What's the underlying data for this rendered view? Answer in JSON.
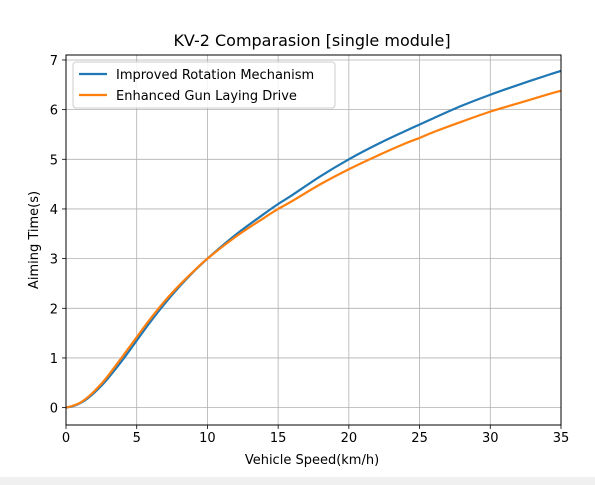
{
  "chart_data": {
    "type": "line",
    "title": "KV-2 Comparasion [single module]",
    "xlabel": "Vehicle Speed(km/h)",
    "ylabel": "Aiming Time(s)",
    "xlim": [
      0,
      35
    ],
    "ylim": [
      -0.35,
      7.1
    ],
    "xticks": [
      0,
      5,
      10,
      15,
      20,
      25,
      30,
      35
    ],
    "yticks": [
      0,
      1,
      2,
      3,
      4,
      5,
      6,
      7
    ],
    "grid": true,
    "legend_position": "upper-left",
    "series": [
      {
        "name": "Improved Rotation Mechanism",
        "color": "#1f77b4",
        "x": [
          0,
          0.5,
          1,
          1.5,
          2,
          2.5,
          3,
          4,
          5,
          6,
          7,
          8,
          9,
          10,
          12,
          14,
          15,
          16,
          18,
          20,
          22,
          24,
          25,
          26,
          28,
          30,
          32,
          34,
          35
        ],
        "y": [
          0,
          0.03,
          0.09,
          0.18,
          0.3,
          0.44,
          0.6,
          0.96,
          1.35,
          1.74,
          2.1,
          2.43,
          2.73,
          3.0,
          3.48,
          3.9,
          4.1,
          4.28,
          4.66,
          5.0,
          5.3,
          5.57,
          5.7,
          5.83,
          6.08,
          6.3,
          6.5,
          6.69,
          6.78
        ]
      },
      {
        "name": "Enhanced Gun Laying Drive",
        "color": "#ff7f0e",
        "x": [
          0,
          0.5,
          1,
          1.5,
          2,
          2.5,
          3,
          4,
          5,
          6,
          7,
          8,
          9,
          10,
          12,
          14,
          15,
          16,
          18,
          20,
          22,
          24,
          25,
          26,
          28,
          30,
          32,
          34,
          35
        ],
        "y": [
          0,
          0.04,
          0.1,
          0.2,
          0.33,
          0.48,
          0.65,
          1.03,
          1.42,
          1.8,
          2.15,
          2.46,
          2.74,
          3.0,
          3.44,
          3.82,
          4.0,
          4.16,
          4.5,
          4.8,
          5.07,
          5.32,
          5.43,
          5.55,
          5.76,
          5.96,
          6.13,
          6.3,
          6.38
        ]
      }
    ]
  }
}
